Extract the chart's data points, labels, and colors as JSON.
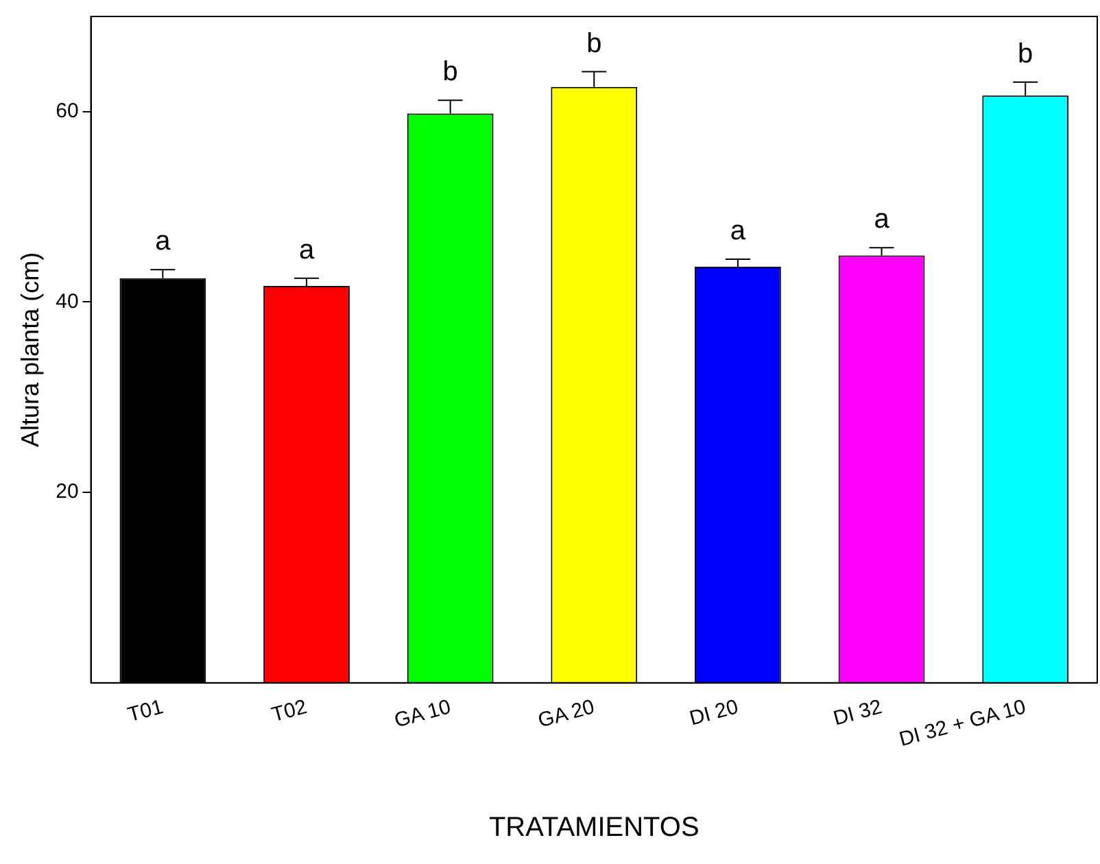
{
  "chart_data": {
    "type": "bar",
    "xlabel": "TRATAMIENTOS",
    "ylabel": "Altura planta (cm)",
    "categories": [
      "T01",
      "T02",
      "GA 10",
      "GA 20",
      "DI 20",
      "DI 32",
      "DI 32 + GA 10"
    ],
    "values": [
      42.5,
      41.7,
      59.8,
      62.6,
      43.7,
      44.9,
      61.7
    ],
    "colors": [
      "#000000",
      "#ff0000",
      "#00ff00",
      "#ffff00",
      "#0000ff",
      "#ff00ff",
      "#00ffff"
    ],
    "errors": [
      [
        42.5,
        43.4
      ],
      [
        41.7,
        42.5
      ],
      [
        59.8,
        61.2
      ],
      [
        62.6,
        64.2
      ],
      [
        43.7,
        44.5
      ],
      [
        44.9,
        45.7
      ],
      [
        61.7,
        63.1
      ]
    ],
    "ylim": [
      0,
      70
    ],
    "yticks": [
      20,
      40,
      60
    ],
    "grid": false,
    "legend": false,
    "annotations": [
      {
        "text": "a",
        "x": "T01",
        "y": 42.5
      },
      {
        "text": "a",
        "x": "T02",
        "y": 41.7
      },
      {
        "text": "b",
        "x": "GA 10",
        "y": 59.8
      },
      {
        "text": "b",
        "x": "GA 20",
        "y": 62.6
      },
      {
        "text": "a",
        "x": "DI 20",
        "y": 43.7
      },
      {
        "text": "a",
        "x": "DI 32",
        "y": 44.9
      },
      {
        "text": "b",
        "x": "DI 32 + GA 10",
        "y": 61.7
      }
    ]
  }
}
